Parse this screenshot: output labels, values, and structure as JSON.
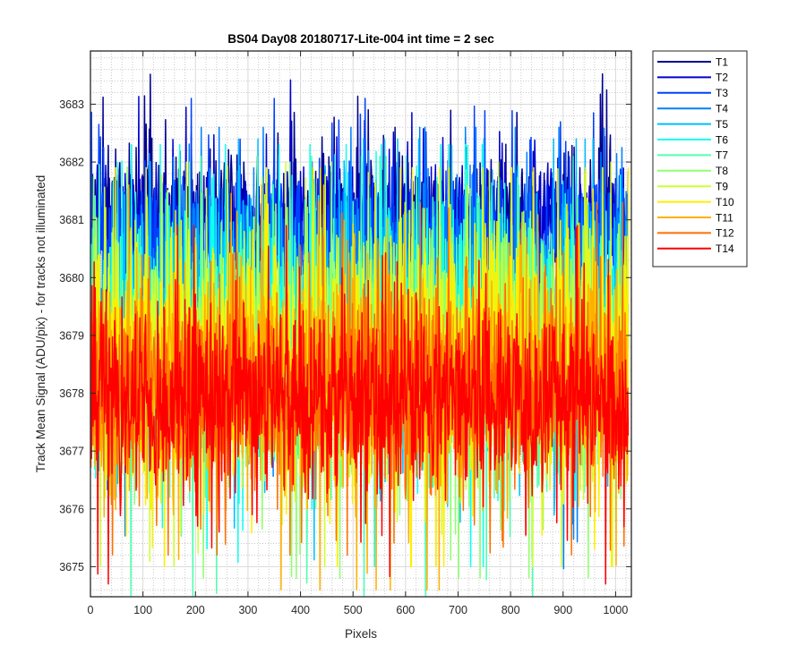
{
  "chart_data": {
    "type": "line",
    "title": "BS04 Day08 20180717-Lite-004 int time = 2 sec",
    "xlabel": "Pixels",
    "ylabel": "Track Mean Signal (ADU/pix) - for tracks not illuminated",
    "xlim": [
      0,
      1030
    ],
    "ylim": [
      3674.48,
      3683.92
    ],
    "xticks": [
      0,
      100,
      200,
      300,
      400,
      500,
      600,
      700,
      800,
      900,
      1000
    ],
    "yticks": [
      3675,
      3676,
      3677,
      3678,
      3679,
      3680,
      3681,
      3682,
      3683
    ],
    "grid": "major and minor",
    "legend_location": "outside right",
    "num_points_per_series": 1024,
    "note": "Each series is noisy around its mean; values are generated from the mean, std, min and max read off the plot.",
    "series": [
      {
        "name": "T1",
        "color": "#00008f",
        "mean": 3680.9,
        "std": 0.75,
        "min": 3679.2,
        "max": 3683.85
      },
      {
        "name": "T2",
        "color": "#0000cf",
        "mean": 3680.75,
        "std": 0.75,
        "min": 3679.0,
        "max": 3683.5
      },
      {
        "name": "T3",
        "color": "#0040ff",
        "mean": 3680.6,
        "std": 0.78,
        "min": 3678.6,
        "max": 3683.1
      },
      {
        "name": "T4",
        "color": "#0080ff",
        "mean": 3679.5,
        "std": 1.2,
        "min": 3674.8,
        "max": 3682.6
      },
      {
        "name": "T5",
        "color": "#00bfff",
        "mean": 3679.2,
        "std": 1.25,
        "min": 3675.1,
        "max": 3682.4
      },
      {
        "name": "T6",
        "color": "#10ffef",
        "mean": 3679.0,
        "std": 1.25,
        "min": 3675.0,
        "max": 3682.3
      },
      {
        "name": "T7",
        "color": "#50ffaf",
        "mean": 3678.8,
        "std": 1.25,
        "min": 3674.5,
        "max": 3682.1
      },
      {
        "name": "T8",
        "color": "#8fff70",
        "mean": 3678.6,
        "std": 1.25,
        "min": 3674.8,
        "max": 3682.0
      },
      {
        "name": "T9",
        "color": "#cfff30",
        "mean": 3678.6,
        "std": 1.25,
        "min": 3675.0,
        "max": 3682.0
      },
      {
        "name": "T10",
        "color": "#ffef00",
        "mean": 3678.5,
        "std": 1.25,
        "min": 3675.0,
        "max": 3681.9
      },
      {
        "name": "T11",
        "color": "#ffaf00",
        "mean": 3678.2,
        "std": 1.2,
        "min": 3674.6,
        "max": 3681.6
      },
      {
        "name": "T12",
        "color": "#ff7000",
        "mean": 3678.0,
        "std": 1.05,
        "min": 3675.2,
        "max": 3681.3
      },
      {
        "name": "T14",
        "color": "#ff0000",
        "mean": 3677.95,
        "std": 1.0,
        "min": 3674.7,
        "max": 3680.9
      }
    ]
  }
}
